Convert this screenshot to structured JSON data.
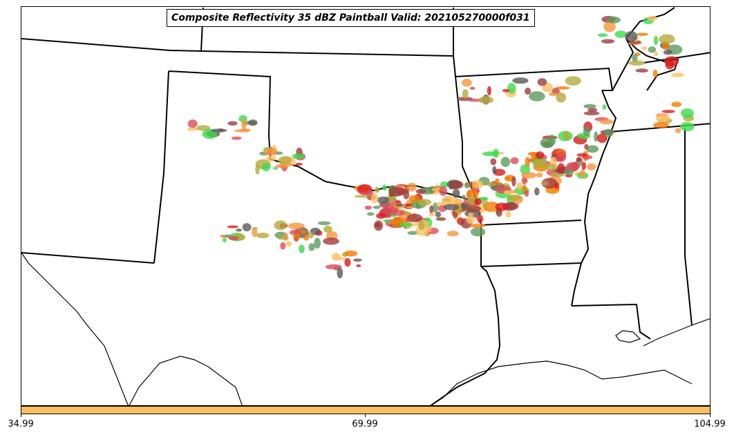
{
  "title": "Composite Reflectivity 35 dBZ Paintball Valid: 202105270000f031",
  "colorbar": {
    "color": "#fdbf63",
    "ticks": [
      "34.99",
      "69.99",
      "104.99"
    ]
  },
  "member_colors": [
    "#a03c3c",
    "#d91a1a",
    "#f47a00",
    "#f8943c",
    "#fdbf63",
    "#b5aa3c",
    "#5c9a5c",
    "#3dd94a",
    "#5a5a5a",
    "#e04a5a"
  ]
}
